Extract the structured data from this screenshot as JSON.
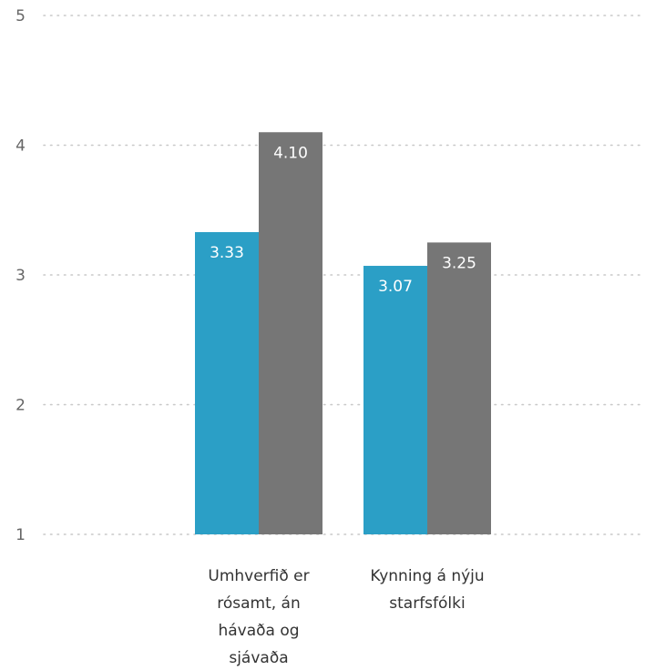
{
  "chart_data": {
    "type": "bar",
    "orientation": "vertical",
    "title": "",
    "xlabel": "",
    "ylabel": "",
    "ylim": [
      1,
      5
    ],
    "yticks": [
      "1",
      "2",
      "3",
      "4",
      "5"
    ],
    "grid": true,
    "legend": "none",
    "categories": [
      [
        "Umhverfið er",
        "rósamt, án",
        "hávaða og",
        "sjávaða"
      ],
      [
        "Kynning á nýju",
        "starfsfólki"
      ]
    ],
    "series": [
      {
        "color": "#2b9fc6",
        "values": [
          3.33,
          3.07
        ],
        "labels": [
          "3.33",
          "3.07"
        ]
      },
      {
        "color": "#767676",
        "values": [
          4.1,
          3.25
        ],
        "labels": [
          "4.10",
          "3.25"
        ]
      }
    ]
  }
}
